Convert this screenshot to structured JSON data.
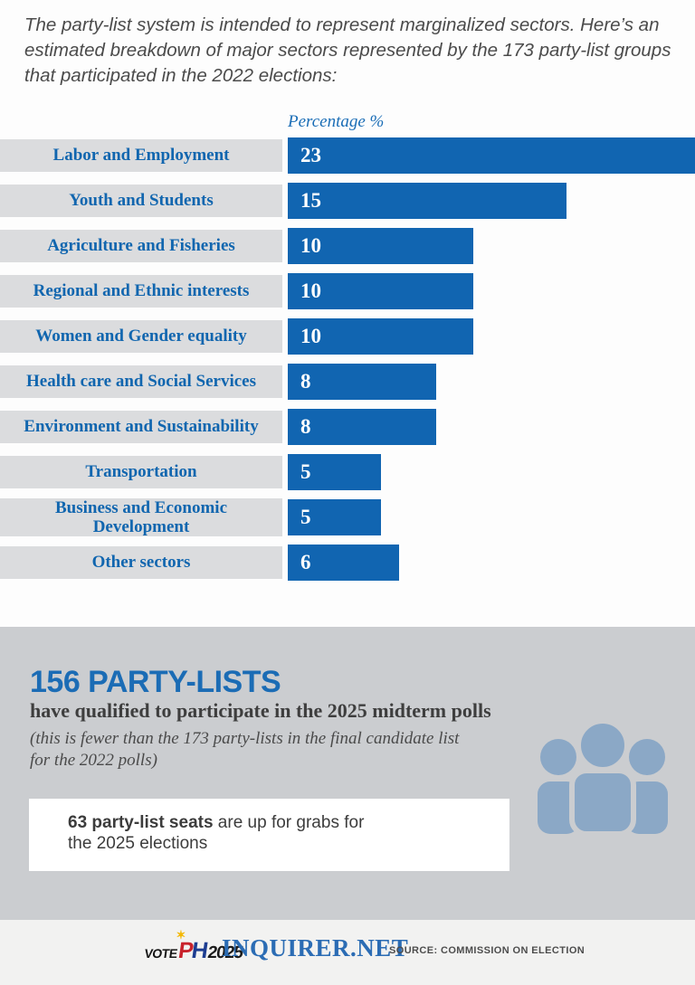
{
  "intro": "The party-list system is intended to represent marginalized sectors. Here’s an estimated breakdown of major sectors represented by the 173 party-list groups that participated in the 2022 elections:",
  "chart_data": {
    "type": "bar",
    "orientation": "horizontal",
    "title": "Percentage %",
    "categories": [
      "Labor and Employment",
      "Youth and Students",
      "Agriculture and Fisheries",
      "Regional and Ethnic interests",
      "Women and Gender equality",
      "Health care and Social Services",
      "Environment and Sustainability",
      "Transportation",
      "Business and Economic Development",
      "Other sectors"
    ],
    "values": [
      23,
      15,
      10,
      10,
      10,
      8,
      8,
      5,
      5,
      6
    ],
    "xlim": [
      0,
      23
    ],
    "legend": "none",
    "grid": false
  },
  "stats": {
    "headline": "156 PARTY-LISTS",
    "subhead": "have qualified to participate in the 2025 midterm polls",
    "note": "(this is fewer than the 173 party-lists in the final candidate list for the 2022 polls)"
  },
  "seats_card": {
    "bold": "63 party-list seats",
    "rest": " are up for grabs for the 2025 elections"
  },
  "footer": {
    "logo": {
      "vote": "VOTE",
      "p": "P",
      "h": "H",
      "year": "2025",
      "sun": "✶"
    },
    "brand": "INQUIRER.NET",
    "source": "SOURCE: COMMISSION ON ELECTION"
  },
  "colors": {
    "bar_blue": "#1165b1",
    "label_blue": "#1166af",
    "band_gray": "#dbdcde",
    "section_gray": "#cbcdd0",
    "footer_bg": "#f2f2f1",
    "headline_blue": "#1b6cb5",
    "people_icon": "#8ba8c6",
    "inquirer_blue": "#2b6cb4",
    "axis_label_blue": "#1a6db6"
  }
}
